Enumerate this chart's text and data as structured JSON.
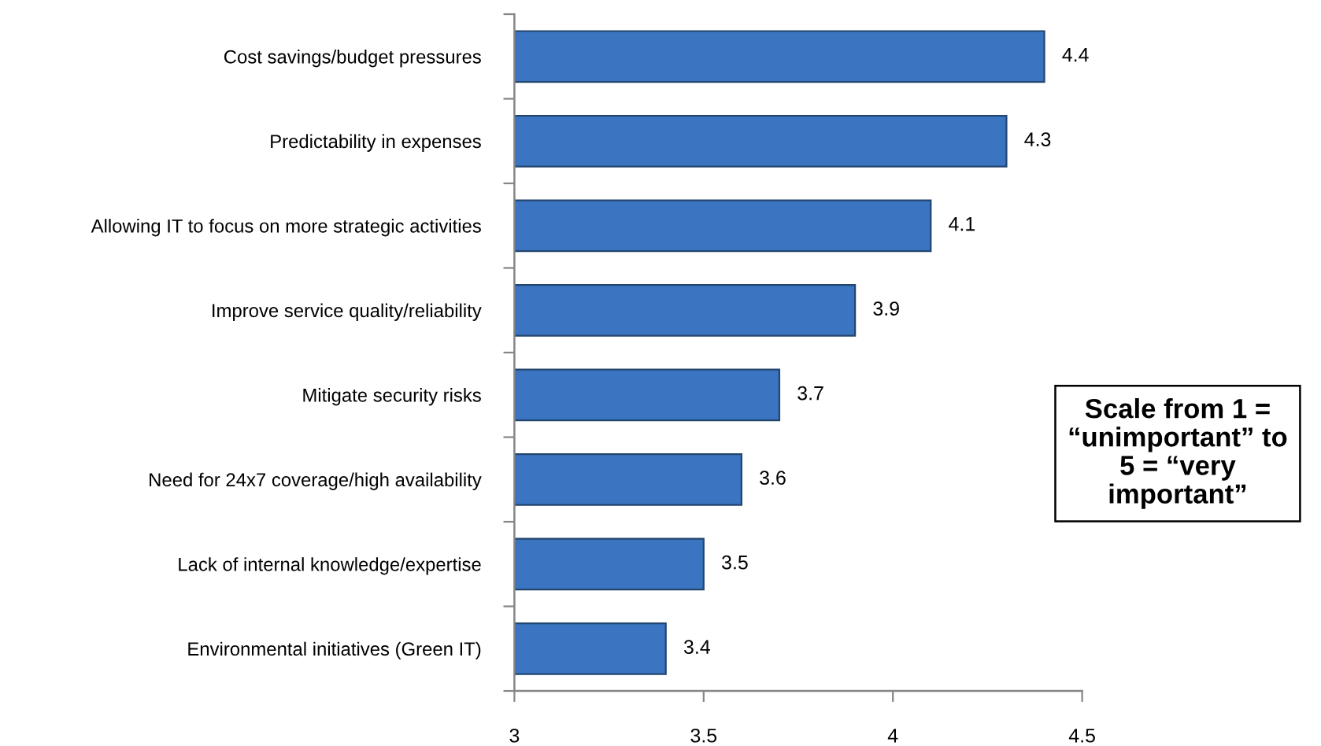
{
  "chart_data": {
    "type": "bar",
    "orientation": "horizontal",
    "categories": [
      "Cost savings/budget pressures",
      "Predictability in expenses",
      "Allowing IT to focus on more strategic activities",
      "Improve service quality/reliability",
      "Mitigate security risks",
      "Need for 24x7 coverage/high availability",
      "Lack of internal knowledge/expertise",
      "Environmental initiatives (Green IT)"
    ],
    "values": [
      4.4,
      4.3,
      4.1,
      3.9,
      3.7,
      3.6,
      3.5,
      3.4
    ],
    "color": "#3b75c1",
    "xlim": [
      3,
      4.5
    ],
    "xticks": [
      3,
      3.5,
      4,
      4.5
    ],
    "data_labels": true,
    "grid": false,
    "annotations": [
      "Scale from 1 =\n“unimportant” to\n5 = “very\nimportant”"
    ]
  }
}
